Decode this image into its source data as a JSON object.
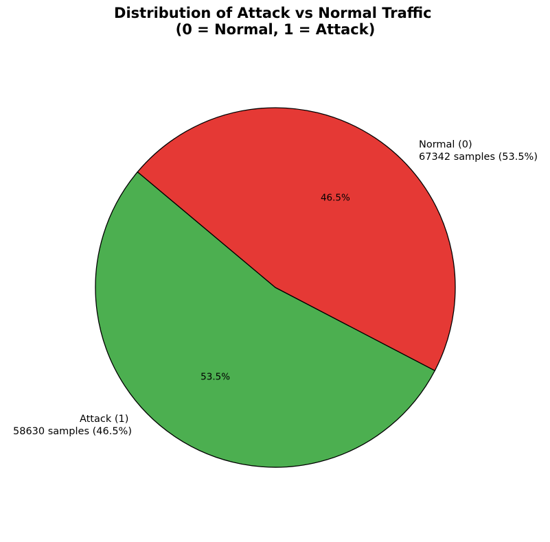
{
  "chart_data": {
    "type": "pie",
    "title_lines": [
      "Distribution of Attack vs Normal Traffic",
      "(0 = Normal, 1 = Attack)"
    ],
    "slices": [
      {
        "label": "Normal (0)",
        "detail": "67342 samples (53.5%)",
        "value": 67342,
        "pct_label": "53.5%",
        "color": "#4caf50"
      },
      {
        "label": "Attack (1)",
        "detail": "58630 samples (46.5%)",
        "value": 58630,
        "pct_label": "46.5%",
        "color": "#e53935"
      }
    ],
    "edge_color": "#000000"
  }
}
